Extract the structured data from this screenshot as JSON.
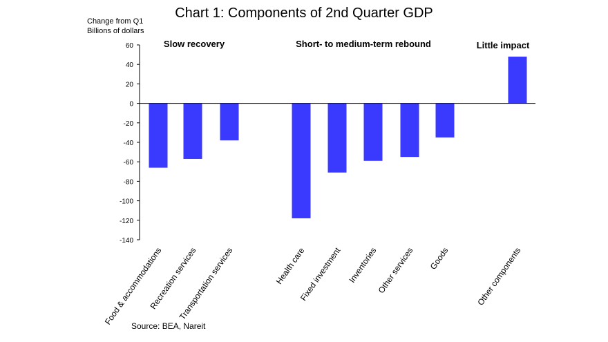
{
  "chart_data": {
    "type": "bar",
    "title": "Chart 1: Components of 2nd Quarter GDP",
    "ylabel_lines": [
      "Change from Q1",
      "Billions of dollars"
    ],
    "categories": [
      "Food & accommodations",
      "Recreation services",
      "Transportation services",
      "Health care",
      "Fixed investment",
      "Inventories",
      "Other services",
      "Goods",
      "Other components"
    ],
    "values": [
      -66,
      -57,
      -38,
      -118,
      -71,
      -59,
      -55,
      -35,
      48
    ],
    "ylim": [
      -140,
      60
    ],
    "yticks": [
      60,
      40,
      20,
      0,
      -20,
      -40,
      -60,
      -80,
      -100,
      -120,
      -140
    ],
    "groups": [
      {
        "label": "Slow recovery"
      },
      {
        "label": "Short- to medium-term rebound"
      },
      {
        "label": "Little impact"
      }
    ],
    "bar_color": "#3a3aff",
    "grid": false,
    "source": "Source: BEA, Nareit"
  }
}
